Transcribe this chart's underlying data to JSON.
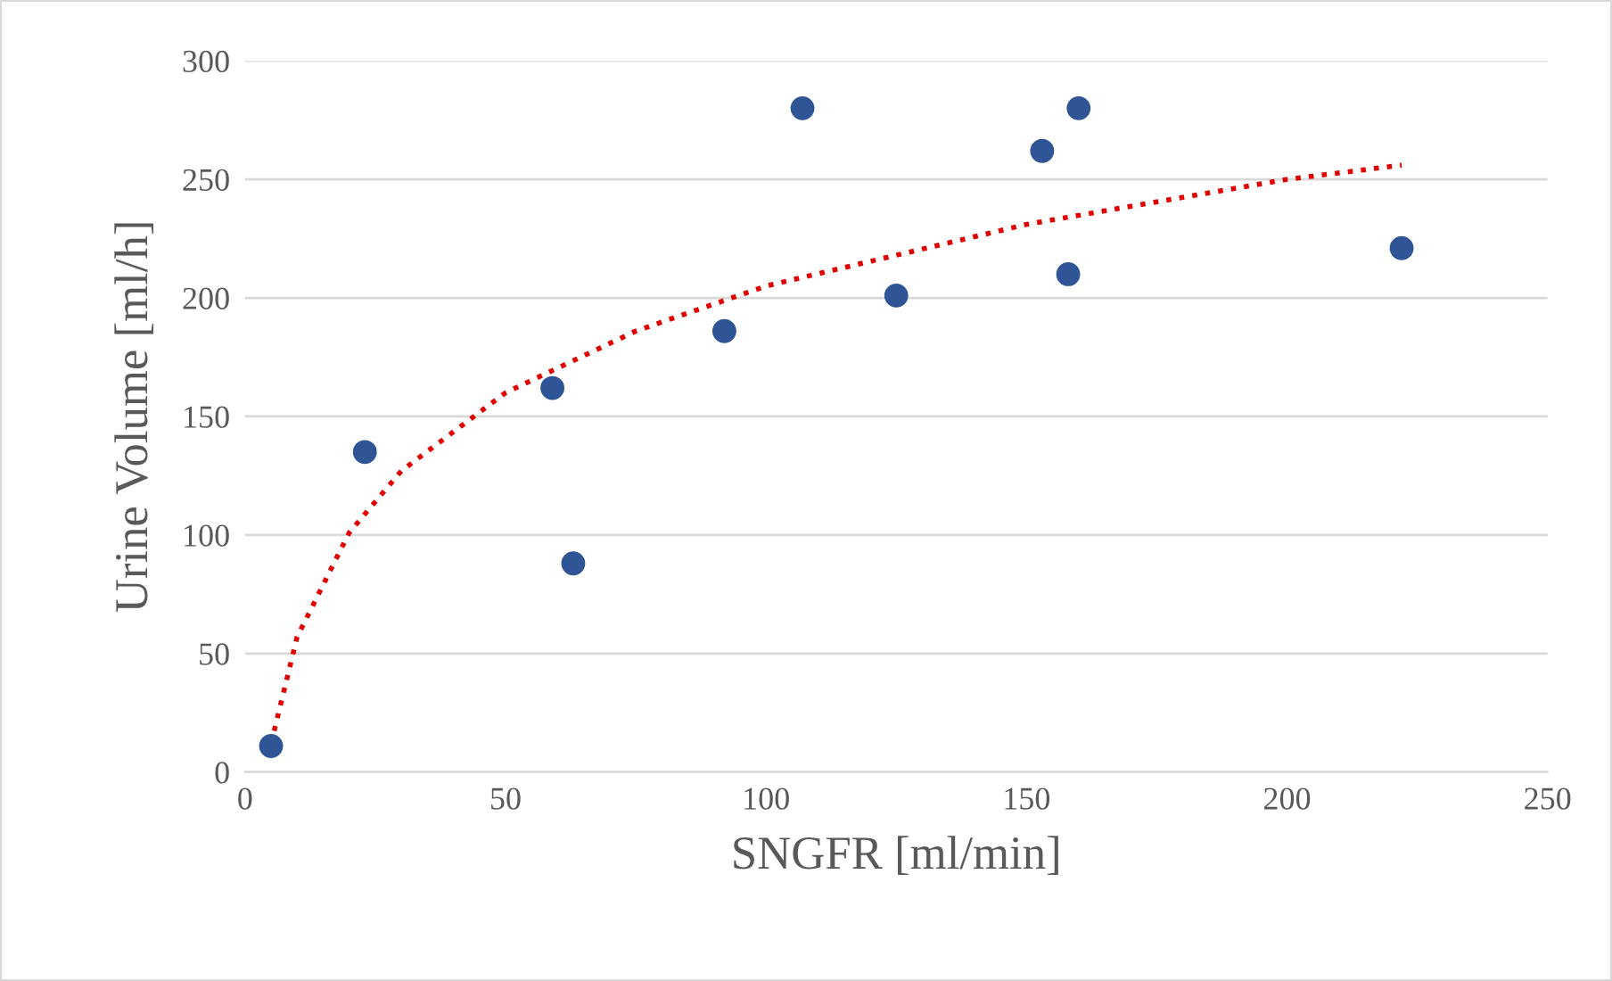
{
  "chart_data": {
    "type": "scatter",
    "xlabel": "SNGFR [ml/min]",
    "ylabel": "Urine Volume [ml/h]",
    "x": [
      5,
      23,
      59,
      63,
      92,
      107,
      125,
      153,
      158,
      160,
      222
    ],
    "series": [
      {
        "type": "scatter",
        "color": "#2f5597",
        "marker": "circle",
        "values": [
          11,
          135,
          162,
          88,
          186,
          280,
          201,
          262,
          210,
          280,
          221
        ]
      },
      {
        "type": "line",
        "color": "#e00000",
        "line_style": "dotted",
        "marker": "none",
        "x": [
          5,
          10,
          20,
          30,
          50,
          75,
          100,
          150,
          200,
          222
        ],
        "values": [
          12,
          57,
          101,
          127,
          160,
          186,
          205,
          231,
          250,
          256
        ]
      }
    ],
    "xlim": [
      0,
      250
    ],
    "xticks": [
      0,
      50,
      100,
      150,
      200,
      250
    ],
    "ylim": [
      0,
      300
    ],
    "yticks": [
      0,
      50,
      100,
      150,
      200,
      250,
      300
    ],
    "grid": "y",
    "legend": false
  }
}
